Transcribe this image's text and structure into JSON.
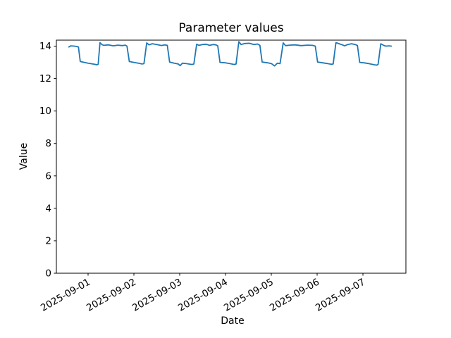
{
  "figure": {
    "background": "#ffffff"
  },
  "chart_data": {
    "type": "line",
    "title": "Parameter values",
    "xlabel": "Date",
    "ylabel": "Value",
    "grid": false,
    "legend": null,
    "line_color": "#1f77b4",
    "line_width": 1.8,
    "axis_color": "#000000",
    "x_tick_labels": [
      "2025-09-01",
      "2025-09-02",
      "2025-09-03",
      "2025-09-04",
      "2025-09-05",
      "2025-09-06",
      "2025-09-07"
    ],
    "x_tick_days": [
      0,
      1,
      2,
      3,
      4,
      5,
      6
    ],
    "y_ticks": [
      0,
      2,
      4,
      6,
      8,
      10,
      12,
      14
    ],
    "xlim_days": [
      -0.692,
      6.938
    ],
    "ylim": [
      0,
      14.37
    ],
    "series": [
      {
        "points": [
          [
            -0.42,
            13.95
          ],
          [
            -0.38,
            14.02
          ],
          [
            -0.3,
            14.0
          ],
          [
            -0.25,
            13.98
          ],
          [
            -0.21,
            13.95
          ],
          [
            -0.17,
            13.05
          ],
          [
            0.0,
            12.95
          ],
          [
            0.14,
            12.88
          ],
          [
            0.19,
            12.85
          ],
          [
            0.22,
            12.88
          ],
          [
            0.26,
            14.22
          ],
          [
            0.3,
            14.1
          ],
          [
            0.34,
            14.05
          ],
          [
            0.45,
            14.08
          ],
          [
            0.55,
            14.02
          ],
          [
            0.65,
            14.06
          ],
          [
            0.75,
            14.03
          ],
          [
            0.81,
            14.06
          ],
          [
            0.85,
            14.0
          ],
          [
            0.9,
            13.05
          ],
          [
            1.0,
            13.0
          ],
          [
            1.1,
            12.95
          ],
          [
            1.18,
            12.9
          ],
          [
            1.22,
            12.92
          ],
          [
            1.28,
            14.2
          ],
          [
            1.33,
            14.08
          ],
          [
            1.4,
            14.15
          ],
          [
            1.5,
            14.1
          ],
          [
            1.6,
            14.04
          ],
          [
            1.68,
            14.08
          ],
          [
            1.73,
            14.05
          ],
          [
            1.78,
            13.02
          ],
          [
            1.88,
            12.95
          ],
          [
            1.97,
            12.9
          ],
          [
            2.01,
            12.8
          ],
          [
            2.06,
            12.95
          ],
          [
            2.15,
            12.92
          ],
          [
            2.27,
            12.87
          ],
          [
            2.31,
            12.9
          ],
          [
            2.37,
            14.12
          ],
          [
            2.42,
            14.05
          ],
          [
            2.5,
            14.1
          ],
          [
            2.58,
            14.12
          ],
          [
            2.65,
            14.05
          ],
          [
            2.73,
            14.1
          ],
          [
            2.79,
            14.08
          ],
          [
            2.83,
            14.02
          ],
          [
            2.88,
            13.0
          ],
          [
            3.0,
            12.97
          ],
          [
            3.1,
            12.92
          ],
          [
            3.19,
            12.87
          ],
          [
            3.23,
            12.9
          ],
          [
            3.29,
            14.28
          ],
          [
            3.34,
            14.1
          ],
          [
            3.42,
            14.16
          ],
          [
            3.52,
            14.18
          ],
          [
            3.62,
            14.1
          ],
          [
            3.7,
            14.13
          ],
          [
            3.75,
            14.05
          ],
          [
            3.8,
            13.02
          ],
          [
            3.92,
            12.97
          ],
          [
            4.0,
            12.93
          ],
          [
            4.07,
            12.78
          ],
          [
            4.13,
            12.95
          ],
          [
            4.19,
            12.92
          ],
          [
            4.26,
            14.2
          ],
          [
            4.31,
            14.03
          ],
          [
            4.4,
            14.06
          ],
          [
            4.52,
            14.08
          ],
          [
            4.65,
            14.03
          ],
          [
            4.78,
            14.06
          ],
          [
            4.9,
            14.05
          ],
          [
            4.96,
            14.0
          ],
          [
            5.01,
            13.02
          ],
          [
            5.12,
            12.97
          ],
          [
            5.22,
            12.93
          ],
          [
            5.31,
            12.88
          ],
          [
            5.35,
            12.9
          ],
          [
            5.41,
            14.22
          ],
          [
            5.48,
            14.15
          ],
          [
            5.55,
            14.08
          ],
          [
            5.6,
            14.02
          ],
          [
            5.67,
            14.1
          ],
          [
            5.75,
            14.15
          ],
          [
            5.83,
            14.1
          ],
          [
            5.88,
            14.04
          ],
          [
            5.93,
            13.0
          ],
          [
            6.02,
            12.97
          ],
          [
            6.12,
            12.93
          ],
          [
            6.25,
            12.85
          ],
          [
            6.3,
            12.83
          ],
          [
            6.33,
            12.87
          ],
          [
            6.39,
            14.15
          ],
          [
            6.45,
            14.05
          ],
          [
            6.5,
            14.0
          ],
          [
            6.57,
            14.02
          ],
          [
            6.62,
            14.0
          ]
        ]
      }
    ]
  }
}
